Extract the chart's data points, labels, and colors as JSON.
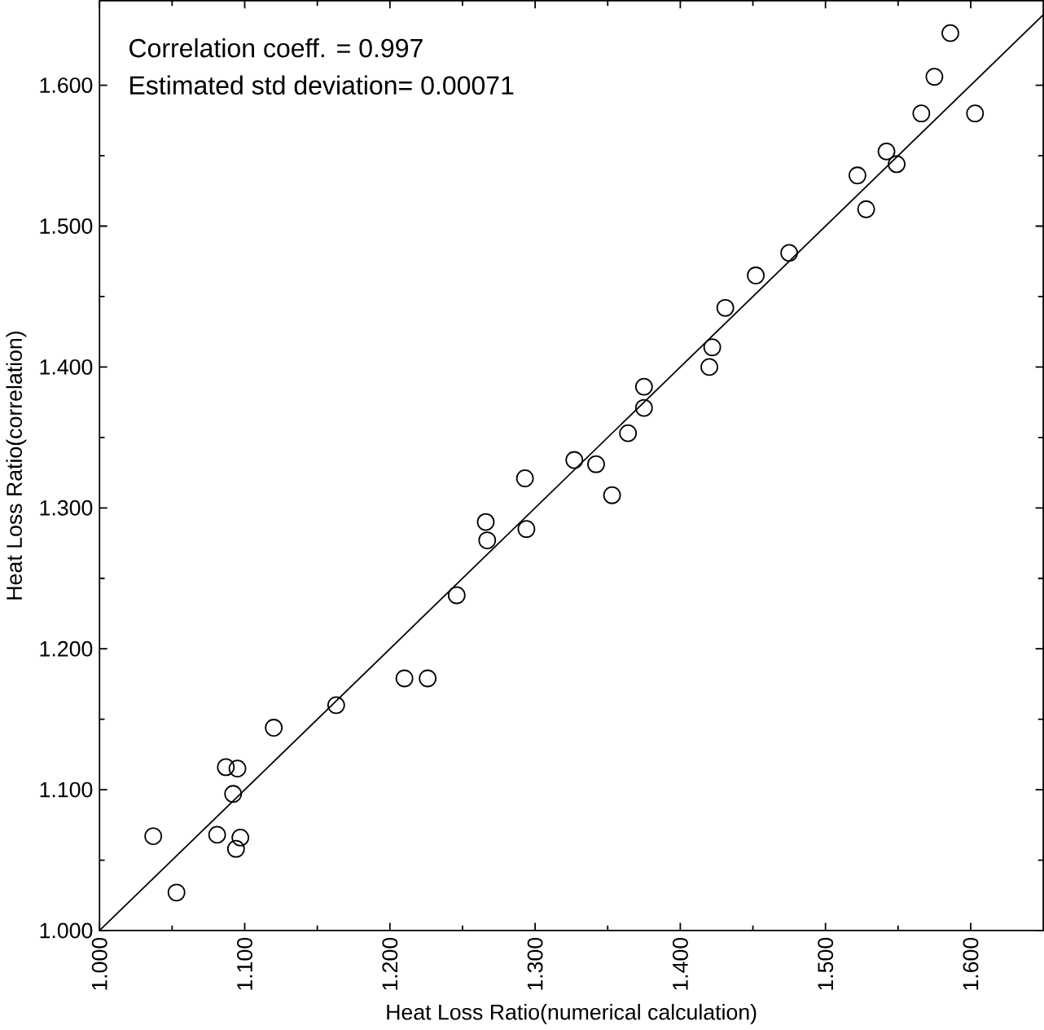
{
  "chart_data": {
    "type": "scatter",
    "xlabel": "Heat Loss Ratio(numerical calculation)",
    "ylabel": "Heat Loss Ratio(correlation)",
    "annotations": [
      "Correlation coeff.       = 0.997",
      "Estimated std deviation= 0.00071"
    ],
    "xlim": [
      1.0,
      1.65
    ],
    "ylim": [
      1.0,
      1.66
    ],
    "xticks": [
      {
        "value": 1.0,
        "label": "1.000"
      },
      {
        "value": 1.1,
        "label": "1.100"
      },
      {
        "value": 1.2,
        "label": "1.200"
      },
      {
        "value": 1.3,
        "label": "1.300"
      },
      {
        "value": 1.4,
        "label": "1.400"
      },
      {
        "value": 1.5,
        "label": "1.500"
      },
      {
        "value": 1.6,
        "label": "1.600"
      }
    ],
    "yticks": [
      {
        "value": 1.0,
        "label": "1.000"
      },
      {
        "value": 1.1,
        "label": "1.100"
      },
      {
        "value": 1.2,
        "label": "1.200"
      },
      {
        "value": 1.3,
        "label": "1.300"
      },
      {
        "value": 1.4,
        "label": "1.400"
      },
      {
        "value": 1.5,
        "label": "1.500"
      },
      {
        "value": 1.6,
        "label": "1.600"
      }
    ],
    "series": [
      {
        "marker": "circle",
        "color": "#000000",
        "x": [
          1.037,
          1.053,
          1.081,
          1.094,
          1.097,
          1.092,
          1.087,
          1.095,
          1.12,
          1.163,
          1.21,
          1.226,
          1.246,
          1.267,
          1.266,
          1.294,
          1.293,
          1.327,
          1.342,
          1.353,
          1.364,
          1.375,
          1.375,
          1.42,
          1.422,
          1.431,
          1.452,
          1.475,
          1.522,
          1.528,
          1.542,
          1.549,
          1.566,
          1.575,
          1.603,
          1.586
        ],
        "values": [
          1.067,
          1.027,
          1.068,
          1.058,
          1.066,
          1.097,
          1.116,
          1.115,
          1.144,
          1.16,
          1.179,
          1.179,
          1.238,
          1.277,
          1.29,
          1.285,
          1.321,
          1.334,
          1.331,
          1.309,
          1.353,
          1.371,
          1.386,
          1.4,
          1.414,
          1.442,
          1.465,
          1.481,
          1.536,
          1.512,
          1.553,
          1.544,
          1.58,
          1.606,
          1.58,
          1.637
        ]
      },
      {
        "type": "line",
        "marker": "none",
        "line_style": "solid",
        "color": "#000000",
        "x": [
          1.0,
          1.65
        ],
        "values": [
          1.0,
          1.65
        ]
      }
    ]
  }
}
